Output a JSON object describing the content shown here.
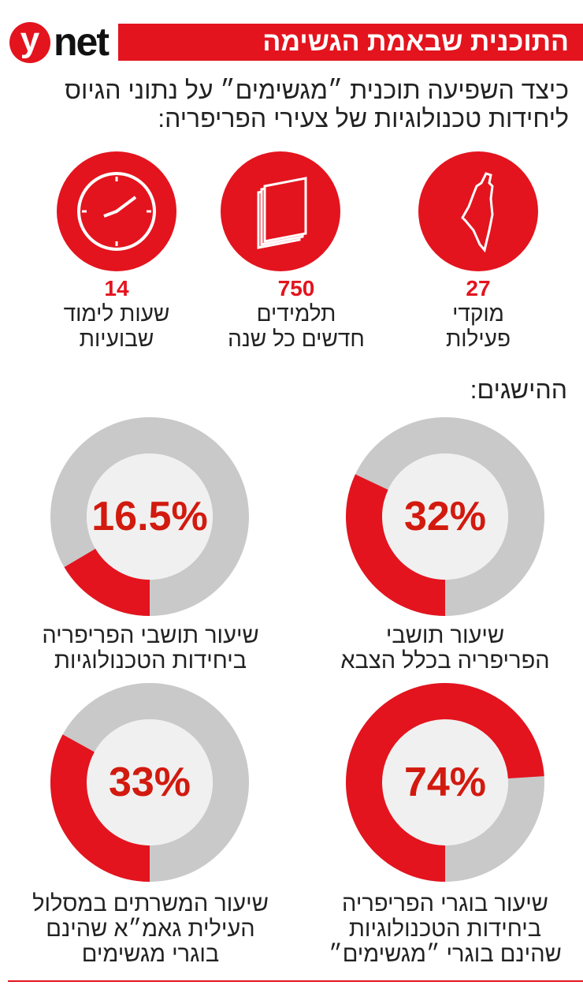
{
  "header": {
    "logo": "ynet",
    "title": "התוכנית שבאמת הגשימה"
  },
  "subtitle": "כיצד השפיעה תוכנית ״מגשימים״ על נתוני הגיוס ליחידות טכנולוגיות של צעירי הפריפריה:",
  "stats": [
    {
      "icon": "israel-map-icon",
      "value": "27",
      "label_line1": "מוקדי",
      "label_line2": "פעילות"
    },
    {
      "icon": "book-icon",
      "value": "750",
      "label_line1": "תלמידים",
      "label_line2": "חדשים כל שנה"
    },
    {
      "icon": "clock-icon",
      "value": "14",
      "label_line1": "שעות לימוד",
      "label_line2": "שבועיות"
    }
  ],
  "achievements_title": "ההישגים:",
  "colors": {
    "accent": "#e3141e",
    "ring": "#c9c9c9",
    "center": "#f1f0f0"
  },
  "chart_data": {
    "type": "pie",
    "variant": "donut",
    "items": [
      {
        "label": "32%",
        "value": 32,
        "caption": [
          "שיעור תושבי",
          "הפריפריה בכלל הצבא"
        ]
      },
      {
        "label": "16.5%",
        "value": 16.5,
        "caption": [
          "שיעור תושבי הפריפריה",
          "ביחידות הטכנולוגיות"
        ]
      },
      {
        "label": "74%",
        "value": 74,
        "caption": [
          "שיעור בוגרי הפריפריה",
          "ביחידות הטכנולוגיות",
          "שהינם בוגרי ״מגשימים״"
        ]
      },
      {
        "label": "33%",
        "value": 33,
        "caption": [
          "שיעור המשרתים במסלול",
          "העילית גאמ״א שהינם",
          "בוגרי מגשימים"
        ]
      }
    ]
  }
}
